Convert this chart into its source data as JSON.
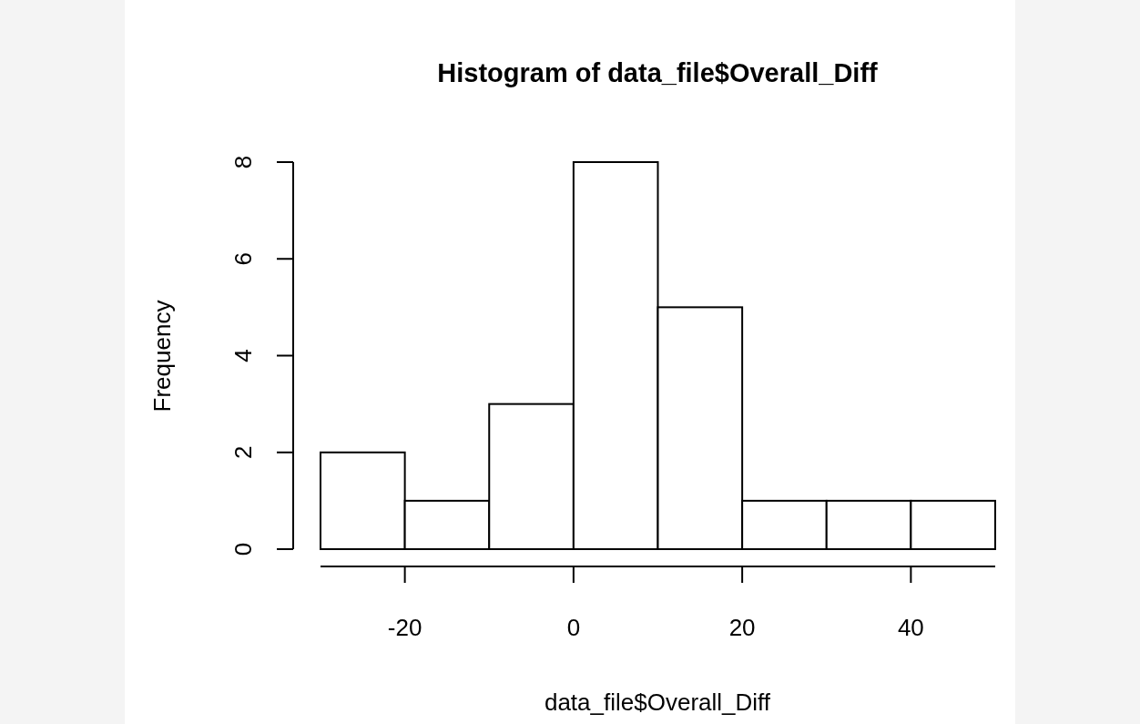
{
  "chart_data": {
    "type": "histogram",
    "title": "Histogram of data_file$Overall_Diff",
    "xlabel": "data_file$Overall_Diff",
    "ylabel": "Frequency",
    "bins": [
      -30,
      -20,
      -10,
      0,
      10,
      20,
      30,
      40,
      50
    ],
    "values": [
      2,
      1,
      3,
      8,
      5,
      1,
      1,
      1
    ],
    "color": "#ffffff",
    "xlim": [
      -30,
      50
    ],
    "xticks": [
      -20,
      0,
      20,
      40
    ],
    "ylim": [
      0,
      8
    ],
    "yticks": [
      0,
      2,
      4,
      6,
      8
    ],
    "grid": false
  }
}
